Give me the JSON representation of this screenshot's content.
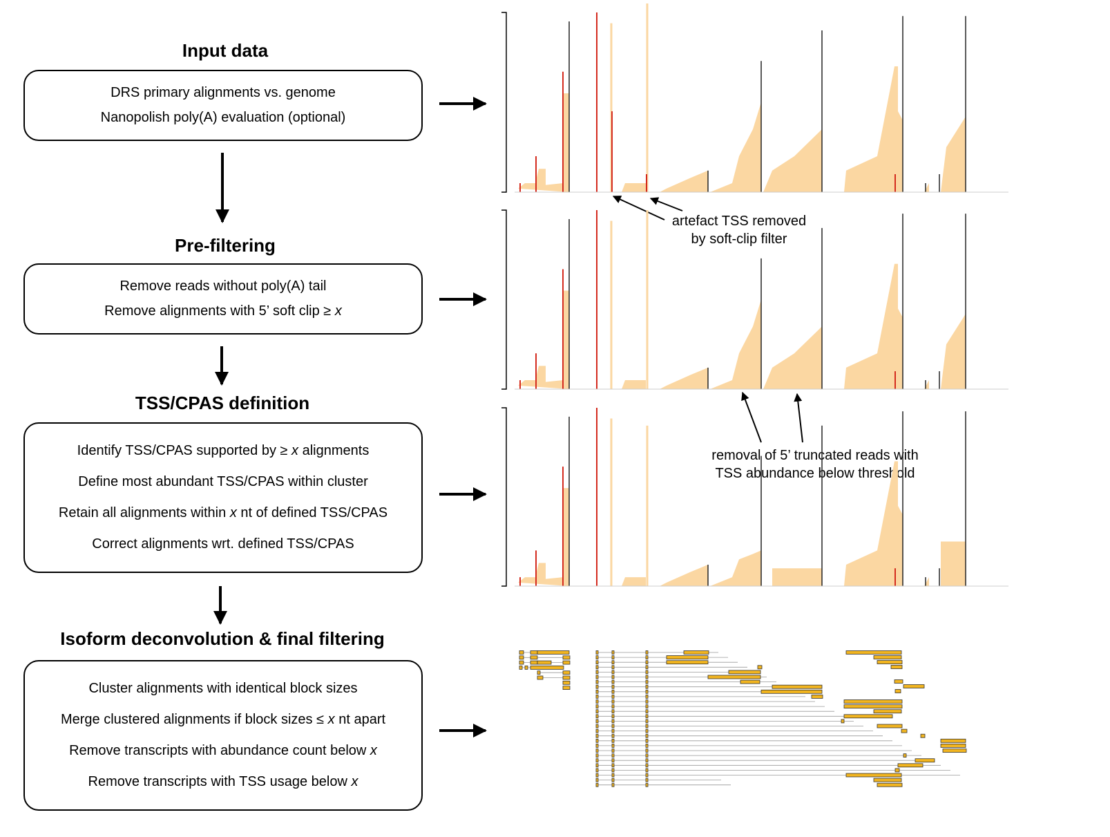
{
  "steps": [
    {
      "title": "Input data",
      "lines": [
        {
          "text": "DRS primary alignments vs. genome",
          "var": "",
          "rest": ""
        },
        {
          "text": "Nanopolish poly(A) evaluation (optional)",
          "var": "",
          "rest": ""
        }
      ]
    },
    {
      "title": "Pre-filtering",
      "lines": [
        {
          "text": "Remove reads without poly(A) tail",
          "var": "",
          "rest": ""
        },
        {
          "text": "Remove alignments with 5’ soft clip ≥ ",
          "var": "x",
          "rest": ""
        }
      ]
    },
    {
      "title": "TSS/CPAS definition",
      "lines": [
        {
          "text": "Identify TSS/CPAS supported by ≥ ",
          "var": "x",
          "rest": " alignments"
        },
        {
          "text": "Define most abundant TSS/CPAS within cluster",
          "var": "",
          "rest": ""
        },
        {
          "text": "Retain all alignments within ",
          "var": "x",
          "rest": " nt of defined TSS/CPAS"
        },
        {
          "text": "Correct alignments wrt. defined TSS/CPAS",
          "var": "",
          "rest": ""
        }
      ]
    },
    {
      "title": "Isoform deconvolution & final filtering",
      "lines": [
        {
          "text": "Cluster alignments with identical block sizes",
          "var": "",
          "rest": ""
        },
        {
          "text": "Merge clustered alignments if block sizes ≤ ",
          "var": "x",
          "rest": " nt apart"
        },
        {
          "text": "Remove transcripts with abundance count below ",
          "var": "x",
          "rest": ""
        },
        {
          "text": "Remove transcripts with TSS usage below ",
          "var": "x",
          "rest": ""
        }
      ]
    }
  ],
  "annotations": {
    "soft_clip": [
      "artefact TSS removed",
      "by soft-clip filter"
    ],
    "truncated": [
      "removal of 5’ truncated reads with",
      "TSS abundance below threshold"
    ]
  },
  "colors": {
    "coverage": "#fbd7a2",
    "tss": "#d42a1e",
    "cpas": "#222222",
    "exon": "#f2b51f",
    "intron": "#9a9a9a"
  }
}
